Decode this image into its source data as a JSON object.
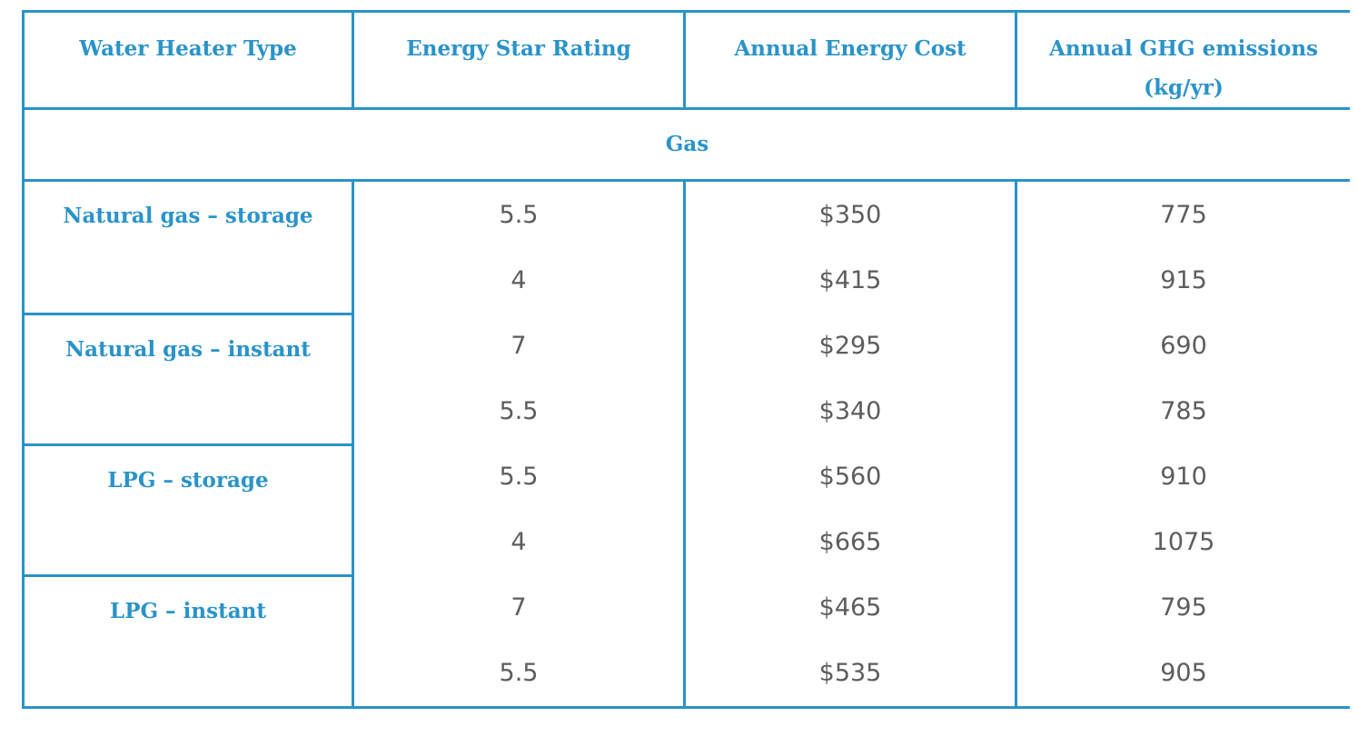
{
  "headers": {
    "type": "Water Heater Type",
    "rating": "Energy Star Rating",
    "cost": "Annual Energy Cost",
    "emissions": "Annual GHG emissions (kg/yr)"
  },
  "section": "Gas",
  "groups": [
    {
      "name": "Natural gas – storage"
    },
    {
      "name": "Natural gas – instant"
    },
    {
      "name": "LPG – storage"
    },
    {
      "name": "LPG – instant"
    }
  ],
  "rows": [
    {
      "rating": "5.5",
      "cost": "$350",
      "emissions": "775"
    },
    {
      "rating": "4",
      "cost": "$415",
      "emissions": "915"
    },
    {
      "rating": "7",
      "cost": "$295",
      "emissions": "690"
    },
    {
      "rating": "5.5",
      "cost": "$340",
      "emissions": "785"
    },
    {
      "rating": "5.5",
      "cost": "$560",
      "emissions": "910"
    },
    {
      "rating": "4",
      "cost": "$665",
      "emissions": "1075"
    },
    {
      "rating": "7",
      "cost": "$465",
      "emissions": "795"
    },
    {
      "rating": "5.5",
      "cost": "$535",
      "emissions": "905"
    }
  ]
}
